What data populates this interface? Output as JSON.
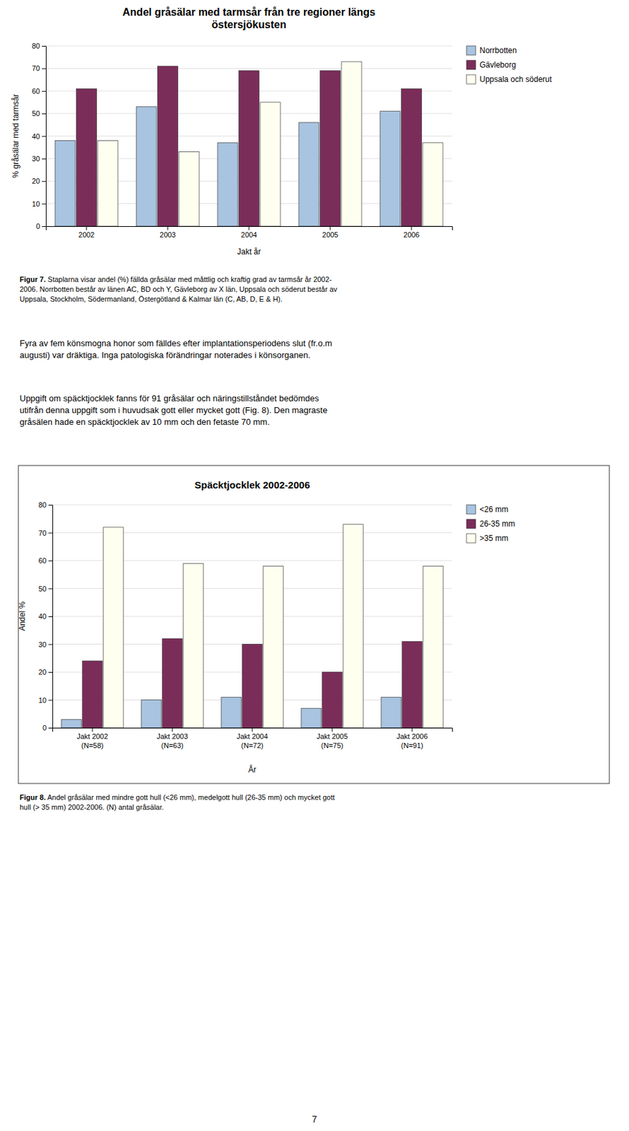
{
  "chart_data": [
    {
      "type": "bar",
      "title": "Andel gråsälar med tarmsår från tre regioner längs\nöstersjökusten",
      "ylabel": "% gråsälar med tarmsår",
      "xlabel": "Jakt år",
      "categories": [
        "2002",
        "2003",
        "2004",
        "2005",
        "2006"
      ],
      "series": [
        {
          "name": "Norrbotten",
          "color": "#a8c4e0",
          "values": [
            38,
            53,
            37,
            46,
            51
          ]
        },
        {
          "name": "Gävleborg",
          "color": "#7b2d5a",
          "values": [
            61,
            71,
            69,
            69,
            61
          ]
        },
        {
          "name": "Uppsala och söderut",
          "color": "#fffff0",
          "values": [
            38,
            33,
            55,
            73,
            37
          ]
        }
      ],
      "ylim": [
        0,
        80
      ],
      "yticks": [
        0,
        10,
        20,
        30,
        40,
        50,
        60,
        70,
        80
      ],
      "grid": true,
      "legend": "right",
      "annotations": [
        "Figur 7.",
        " Staplarna visar andel (%) fällda gråsälar med måttlig och kraftig grad av tarmsår år 2002-\n2006. Norrbotten består av länen AC, BD och Y, Gävleborg av X län, Uppsala och söderut består av\nUppsala, Stockholm, Södermanland, Östergötland & Kalmar län (C, AB, D, E & H)."
      ]
    },
    {
      "type": "bar",
      "title": "Späcktjocklek 2002-2006",
      "ylabel": "Andel %",
      "xlabel": "År",
      "categories": [
        "Jakt 2002\n(N=58)",
        "Jakt 2003\n(N=63)",
        "Jakt 2004\n(N=72)",
        "Jakt 2005\n(N=75)",
        "Jakt 2006\n(N=91)"
      ],
      "series": [
        {
          "name": "<26 mm",
          "color": "#a8c4e0",
          "values": [
            3,
            10,
            11,
            7,
            11
          ]
        },
        {
          "name": "26-35 mm",
          "color": "#7b2d5a",
          "values": [
            24,
            32,
            30,
            20,
            31
          ]
        },
        {
          "name": ">35 mm",
          "color": "#fffff0",
          "values": [
            72,
            59,
            58,
            73,
            58
          ]
        }
      ],
      "ylim": [
        0,
        80
      ],
      "yticks": [
        0,
        10,
        20,
        30,
        40,
        50,
        60,
        70,
        80
      ],
      "grid": true,
      "legend": "right",
      "annotations": [
        "Figur 8.",
        " Andel gråsälar med mindre gott hull (<26 mm), medelgott hull (26-35 mm) och mycket gott\nhull (> 35 mm) 2002-2006. (N) antal gråsälar."
      ]
    }
  ],
  "paragraphs": [
    "Fyra av fem könsmogna honor som fälldes efter implantationsperiodens slut (fr.o.m\naugusti) var dräktiga. Inga patologiska förändringar noterades i könsorganen.",
    "Uppgift om späcktjocklek fanns för 91 gråsälar och näringstillståndet bedömdes\nutifrån denna uppgift som i huvudsak gott eller mycket gott (Fig. 8). Den magraste\ngråsälen hade en späcktjocklek av 10 mm och den fetaste 70 mm."
  ],
  "page_number": "7"
}
